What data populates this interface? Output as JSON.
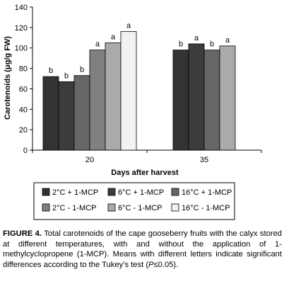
{
  "chart_data": {
    "type": "bar",
    "xlabel": "Days after harvest",
    "ylabel": "Carotenoids (μg/g FW)",
    "ylim": [
      0,
      140
    ],
    "yticks": [
      0,
      20,
      40,
      60,
      80,
      100,
      120,
      140
    ],
    "categories": [
      "20",
      "35"
    ],
    "series": [
      {
        "name": "2°C + 1-MCP",
        "color": "#333333",
        "values": [
          72,
          98
        ],
        "letters": [
          "b",
          "b"
        ]
      },
      {
        "name": "6°C + 1-MCP",
        "color": "#3c3c3c",
        "values": [
          67,
          104
        ],
        "letters": [
          "b",
          "a"
        ]
      },
      {
        "name": "16°C + 1-MCP",
        "color": "#666666",
        "values": [
          73,
          98
        ],
        "letters": [
          "b",
          "b"
        ]
      },
      {
        "name": "2°C - 1-MCP",
        "color": "#808080",
        "values": [
          98,
          null
        ],
        "letters": [
          "a",
          ""
        ]
      },
      {
        "name": "6°C - 1-MCP",
        "color": "#aaaaaa",
        "values": [
          105,
          102
        ],
        "letters": [
          "a",
          "a"
        ]
      },
      {
        "name": "16°C - 1-MCP",
        "color": "#f2f2f2",
        "values": [
          116,
          null
        ],
        "letters": [
          "a",
          ""
        ]
      }
    ],
    "legend_placement": "bottom",
    "grid": false
  },
  "caption": {
    "label": "FIGURE 4.",
    "text_before_p": "Total carotenoids of the cape gooseberry fruits with the calyx stored at different temperatures, with and without the application of 1-methylcyclopropene (1-MCP). Means with different letters indicate significant differences according to the Tukey’s test (",
    "p_symbol": "P",
    "text_after_p": "≤0.05)."
  }
}
